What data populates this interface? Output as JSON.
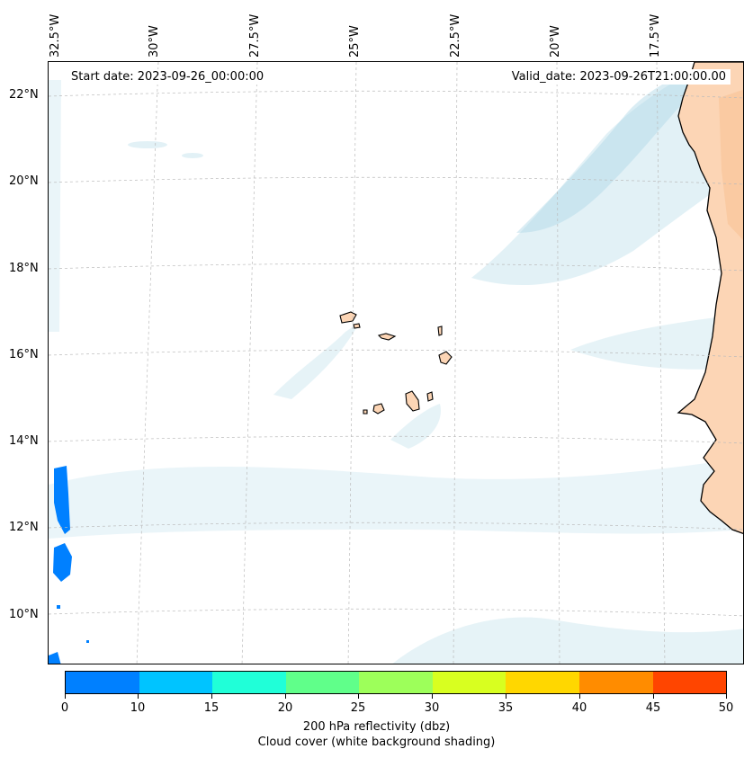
{
  "map": {
    "start_date": "Start date: 2023-09-26_00:00:00",
    "valid_date": "Valid_date: 2023-09-26T21:00:00.00",
    "longitude_labels": [
      "32.5°W",
      "30°W",
      "27.5°W",
      "25°W",
      "22.5°W",
      "20°W",
      "17.5°W"
    ],
    "latitude_labels": [
      "22°N",
      "20°N",
      "18°N",
      "16°N",
      "14°N",
      "12°N",
      "10°N"
    ]
  },
  "colorbar": {
    "ticks": [
      "0",
      "10",
      "15",
      "20",
      "25",
      "30",
      "35",
      "40",
      "45",
      "50"
    ],
    "colors": [
      "#0080ff",
      "#00c4ff",
      "#20ffd8",
      "#60ff8a",
      "#9dff5a",
      "#d8ff20",
      "#ffd700",
      "#ff8c00",
      "#ff4500"
    ],
    "label_line1": "200 hPa reflectivity (dbz)",
    "label_line2": "Cloud cover (white background shading)"
  },
  "style": {
    "cloud_color": "#add8e6",
    "land_color": "#fcd5b5",
    "reflectivity_color": "#0080ff"
  }
}
